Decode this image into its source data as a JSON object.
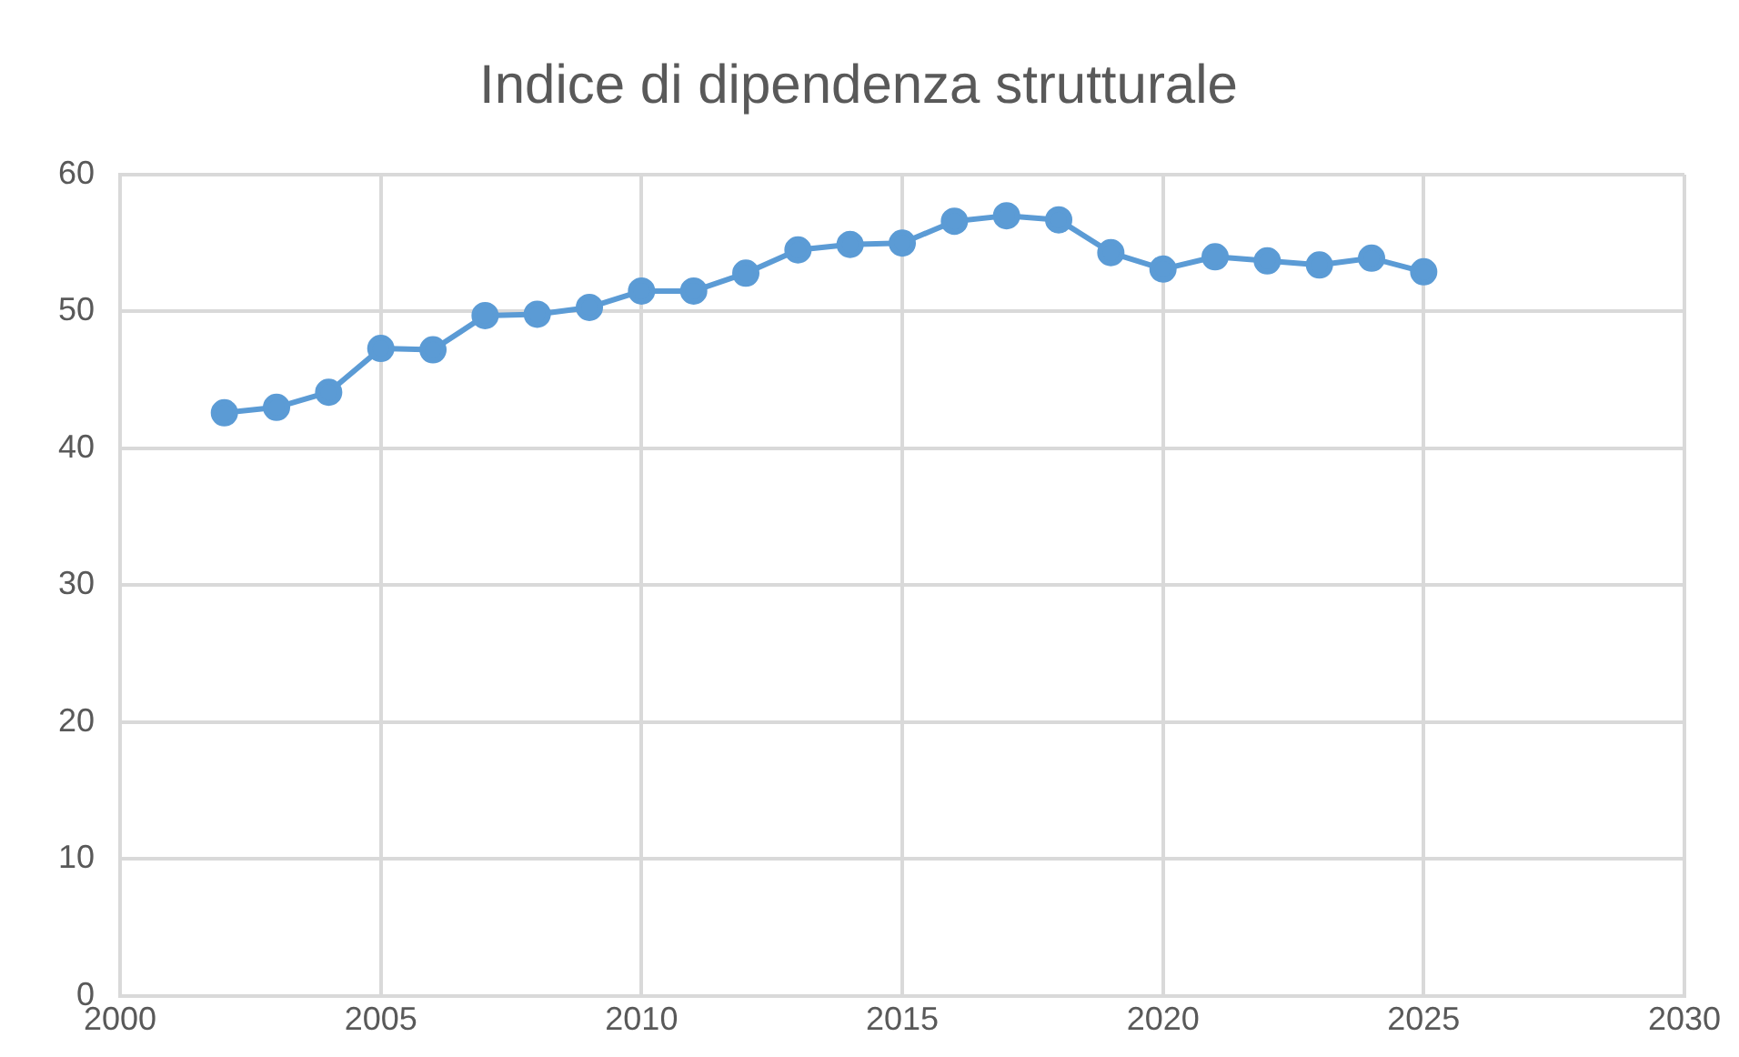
{
  "chart_data": {
    "type": "line",
    "title": "Indice di dipendenza strutturale",
    "x": [
      2002,
      2003,
      2004,
      2005,
      2006,
      2007,
      2008,
      2009,
      2010,
      2011,
      2012,
      2013,
      2014,
      2015,
      2016,
      2017,
      2018,
      2019,
      2020,
      2021,
      2022,
      2023,
      2024,
      2025
    ],
    "series": [
      {
        "color": "#5b9bd5",
        "values": [
          42.6,
          43.0,
          44.1,
          47.3,
          47.2,
          49.7,
          49.8,
          50.3,
          51.5,
          51.5,
          52.8,
          54.5,
          54.9,
          55.0,
          56.6,
          57.0,
          56.7,
          54.3,
          53.1,
          54.0,
          53.7,
          53.4,
          53.9,
          52.9
        ]
      }
    ],
    "xlim": [
      2000,
      2030
    ],
    "xticks": [
      2000,
      2005,
      2010,
      2015,
      2020,
      2025,
      2030
    ],
    "ylim": [
      0,
      60
    ],
    "yticks": [
      0,
      10,
      20,
      30,
      40,
      50,
      60
    ],
    "grid": true,
    "legend": false,
    "marker": "circle",
    "line_style": "solid"
  }
}
